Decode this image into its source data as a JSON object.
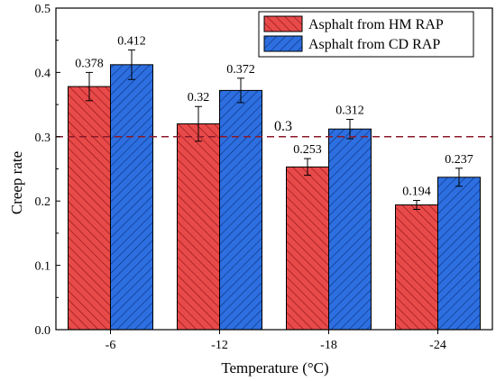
{
  "chart_data": {
    "type": "bar",
    "categories": [
      "-6",
      "-12",
      "-18",
      "-24"
    ],
    "series": [
      {
        "name": "Asphalt from HM RAP",
        "color": "#e84a4a",
        "hatch": "#8a1010",
        "values": [
          0.378,
          0.32,
          0.253,
          0.194
        ],
        "errors": [
          0.022,
          0.027,
          0.013,
          0.007
        ],
        "labels": [
          "0.378",
          "0.32",
          "0.253",
          "0.194"
        ]
      },
      {
        "name": "Asphalt from CD RAP",
        "color": "#2d6fe0",
        "hatch": "#0a2f7a",
        "values": [
          0.412,
          0.372,
          0.312,
          0.237
        ],
        "errors": [
          0.023,
          0.019,
          0.015,
          0.014
        ],
        "labels": [
          "0.412",
          "0.372",
          "0.312",
          "0.237"
        ]
      }
    ],
    "xlabel": "Temperature (°C)",
    "ylabel": "Creep rate",
    "ylim": [
      0,
      0.5
    ],
    "yticks": [
      "0.0",
      "0.1",
      "0.2",
      "0.3",
      "0.4",
      "0.5"
    ],
    "reference_line": {
      "value": 0.3,
      "label": "0.3",
      "color": "#8b1a2a",
      "style": "dashed"
    },
    "legend_position": "top-right",
    "grid": false
  }
}
